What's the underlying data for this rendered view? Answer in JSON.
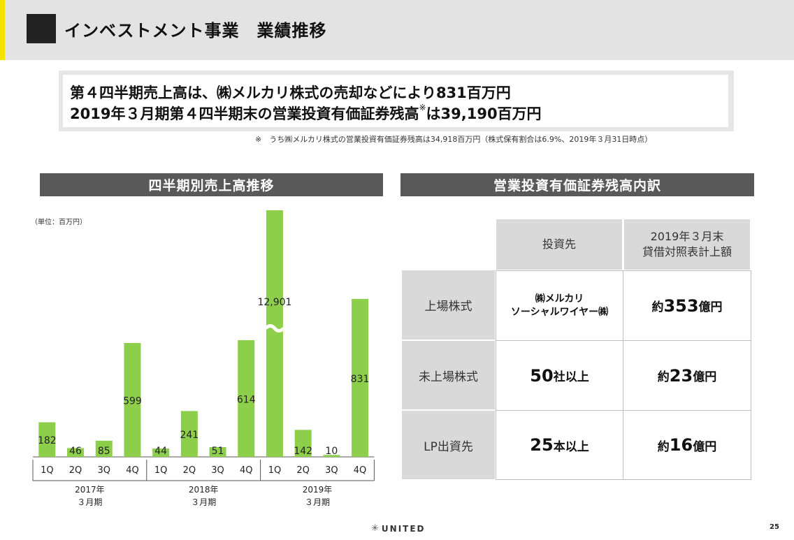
{
  "header": {
    "title": "インベストメント事業　業績推移"
  },
  "summary": {
    "line1": "第４四半期売上高は、㈱メルカリ株式の売却などにより831百万円",
    "line2_pre": "2019年３月期第４四半期末の営業投資有価証券残高",
    "line2_mark": "※",
    "line2_post": "は39,190百万円"
  },
  "note": "※　うち㈱メルカリ株式の営業投資有価証券残高は34,918百万円（株式保有割合は6.9%、2019年３月31日時点）",
  "left_section": {
    "title": "四半期別売上高推移",
    "unit": "（単位：百万円）"
  },
  "right_section": {
    "title": "営業投資有価証券残高内訳"
  },
  "chart_data": {
    "type": "bar",
    "categories": [
      "1Q",
      "2Q",
      "3Q",
      "4Q",
      "1Q",
      "2Q",
      "3Q",
      "4Q",
      "1Q",
      "2Q",
      "3Q",
      "4Q"
    ],
    "groups": [
      {
        "label_line1": "2017年",
        "label_line2": "３月期"
      },
      {
        "label_line1": "2018年",
        "label_line2": "３月期"
      },
      {
        "label_line1": "2019年",
        "label_line2": "３月期"
      }
    ],
    "values": [
      182,
      46,
      85,
      599,
      44,
      241,
      51,
      614,
      12901,
      142,
      10,
      831
    ],
    "labels": [
      "182",
      "46",
      "85",
      "599",
      "44",
      "241",
      "51",
      "614",
      "12,901",
      "142",
      "10",
      "831"
    ],
    "axis_break_at_index": 8,
    "bar_color": "#8dcf4a",
    "ylabel": "（単位：百万円）"
  },
  "table": {
    "header": {
      "col1": "投資先",
      "col2_line1": "2019年３月末",
      "col2_line2": "貸借対照表計上額"
    },
    "rows": [
      {
        "label": "上場株式",
        "target_line1": "㈱メルカリ",
        "target_line2": "ソーシャルワイヤー㈱",
        "amount_pre": "約",
        "amount_num": "353",
        "amount_unit": "億円"
      },
      {
        "label": "未上場株式",
        "target_num": "50",
        "target_unit": "社以上",
        "amount_pre": "約",
        "amount_num": "23",
        "amount_unit": "億円"
      },
      {
        "label": "LP出資先",
        "target_num": "25",
        "target_unit": "本以上",
        "amount_pre": "約",
        "amount_num": "16",
        "amount_unit": "億円"
      }
    ]
  },
  "footer": {
    "logo_text": "UNITED",
    "logo_mark": "✳",
    "page_number": "25"
  }
}
